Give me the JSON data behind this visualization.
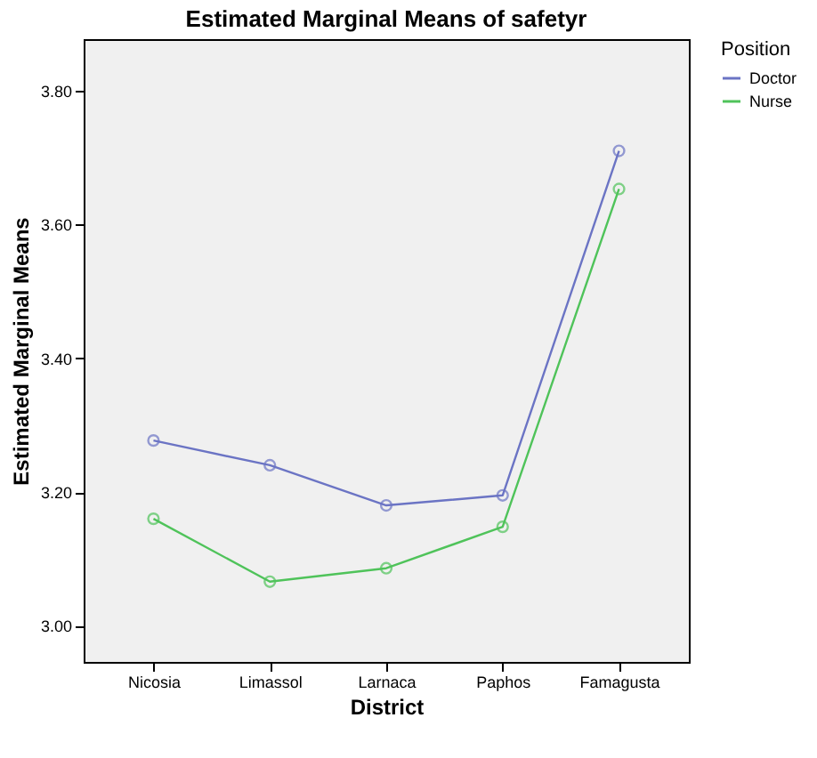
{
  "chart_data": {
    "type": "line",
    "title": "Estimated Marginal Means of safetyr",
    "xlabel": "District",
    "ylabel": "Estimated Marginal Means",
    "legend_title": "Position",
    "categories": [
      "Nicosia",
      "Limassol",
      "Larnaca",
      "Paphos",
      "Famagusta"
    ],
    "series": [
      {
        "name": "Doctor",
        "color": "#6b74c4",
        "values": [
          3.277,
          3.24,
          3.18,
          3.195,
          3.71
        ]
      },
      {
        "name": "Nurse",
        "color": "#4fc35a",
        "values": [
          3.16,
          3.066,
          3.086,
          3.148,
          3.653
        ]
      }
    ],
    "ylim": [
      2.946,
      3.877
    ],
    "yticks": [
      {
        "value": 3.0,
        "label": "3.00"
      },
      {
        "value": 3.2,
        "label": "3.20"
      },
      {
        "value": 3.4,
        "label": "3.40"
      },
      {
        "value": 3.6,
        "label": "3.60"
      },
      {
        "value": 3.8,
        "label": "3.80"
      }
    ],
    "grid": false,
    "legend": "top right",
    "marker": "circle",
    "line_style": "solid"
  }
}
